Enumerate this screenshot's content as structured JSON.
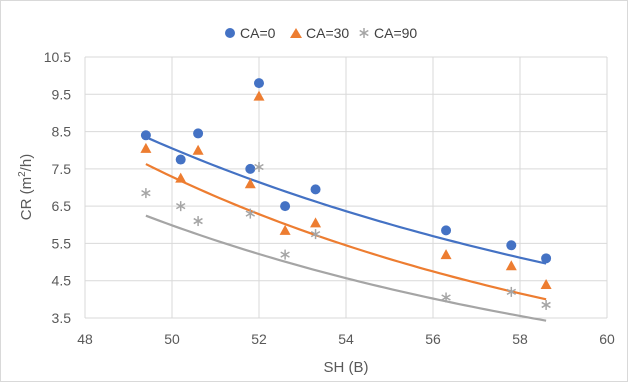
{
  "chart_data": {
    "type": "scatter",
    "xlabel": "SH (B)",
    "ylabel_prefix": "CR (m",
    "ylabel_sup": "2",
    "ylabel_suffix": "/h)",
    "xlim": [
      48,
      60
    ],
    "ylim": [
      3.5,
      10.5
    ],
    "x_ticks": [
      48,
      50,
      52,
      54,
      56,
      58,
      60
    ],
    "y_ticks": [
      "3.5",
      "4.5",
      "5.5",
      "6.5",
      "7.5",
      "8.5",
      "9.5",
      "10.5"
    ],
    "grid": true,
    "legend_position": "top",
    "trendline": "power",
    "series": [
      {
        "name": "CA=0",
        "marker": "circle",
        "color": "#4472c4",
        "points": [
          [
            49.4,
            8.4
          ],
          [
            50.2,
            7.75
          ],
          [
            50.6,
            8.45
          ],
          [
            51.8,
            7.5
          ],
          [
            52.0,
            9.8
          ],
          [
            52.6,
            6.5
          ],
          [
            53.3,
            6.95
          ],
          [
            56.3,
            5.85
          ],
          [
            57.8,
            5.45
          ],
          [
            58.6,
            5.1
          ]
        ],
        "trend": {
          "a": 1223500.0,
          "b": -3.05
        }
      },
      {
        "name": "CA=30",
        "marker": "triangle",
        "color": "#ed7d31",
        "points": [
          [
            49.4,
            8.05
          ],
          [
            50.2,
            7.25
          ],
          [
            50.6,
            8.0
          ],
          [
            51.8,
            7.1
          ],
          [
            52.0,
            9.45
          ],
          [
            52.6,
            5.85
          ],
          [
            53.3,
            6.05
          ],
          [
            56.3,
            5.2
          ],
          [
            57.8,
            4.9
          ],
          [
            58.6,
            4.4
          ]
        ],
        "trend": {
          "a": 19264000.0,
          "b": -3.78
        }
      },
      {
        "name": "CA=90",
        "marker": "asterisk",
        "color": "#a5a5a5",
        "points": [
          [
            49.4,
            6.85
          ],
          [
            50.2,
            6.5
          ],
          [
            50.6,
            6.1
          ],
          [
            51.8,
            6.3
          ],
          [
            52.0,
            7.55
          ],
          [
            52.6,
            5.2
          ],
          [
            53.3,
            5.75
          ],
          [
            56.3,
            4.05
          ],
          [
            57.8,
            4.2
          ],
          [
            58.6,
            3.85
          ]
        ],
        "trend": {
          "a": 5501500.0,
          "b": -3.51
        }
      }
    ]
  }
}
